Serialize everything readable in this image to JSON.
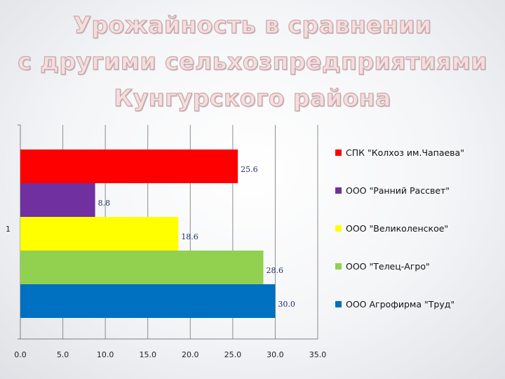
{
  "title_lines": [
    "Урожайность в сравнении",
    "с другими сельхозпредприятиями",
    "Кунгурского района"
  ],
  "chart_data": {
    "type": "bar",
    "orientation": "horizontal",
    "categories": [
      "1"
    ],
    "series": [
      {
        "name": "СПК \"Колхоз им.Чапаева\"",
        "values": [
          25.6
        ],
        "color": "#ff0000"
      },
      {
        "name": "ООО \"Ранний Рассвет\"",
        "values": [
          8.8
        ],
        "color": "#7030a0"
      },
      {
        "name": "ООО \"Великоленское\"",
        "values": [
          18.6
        ],
        "color": "#ffff00"
      },
      {
        "name": "ООО \"Телец-Агро\"",
        "values": [
          28.6
        ],
        "color": "#92d050"
      },
      {
        "name": "ООО Агрофирма \"Труд\"",
        "values": [
          30.0
        ],
        "color": "#0070c0"
      }
    ],
    "data_labels": [
      "25.6",
      "8.8",
      "18.6",
      "28.6",
      "30.0"
    ],
    "x_ticks": [
      "0.0",
      "5.0",
      "10.0",
      "15.0",
      "20.0",
      "25.0",
      "30.0",
      "35.0"
    ],
    "xlim": [
      0,
      35
    ],
    "grid": true,
    "legend_position": "right"
  }
}
